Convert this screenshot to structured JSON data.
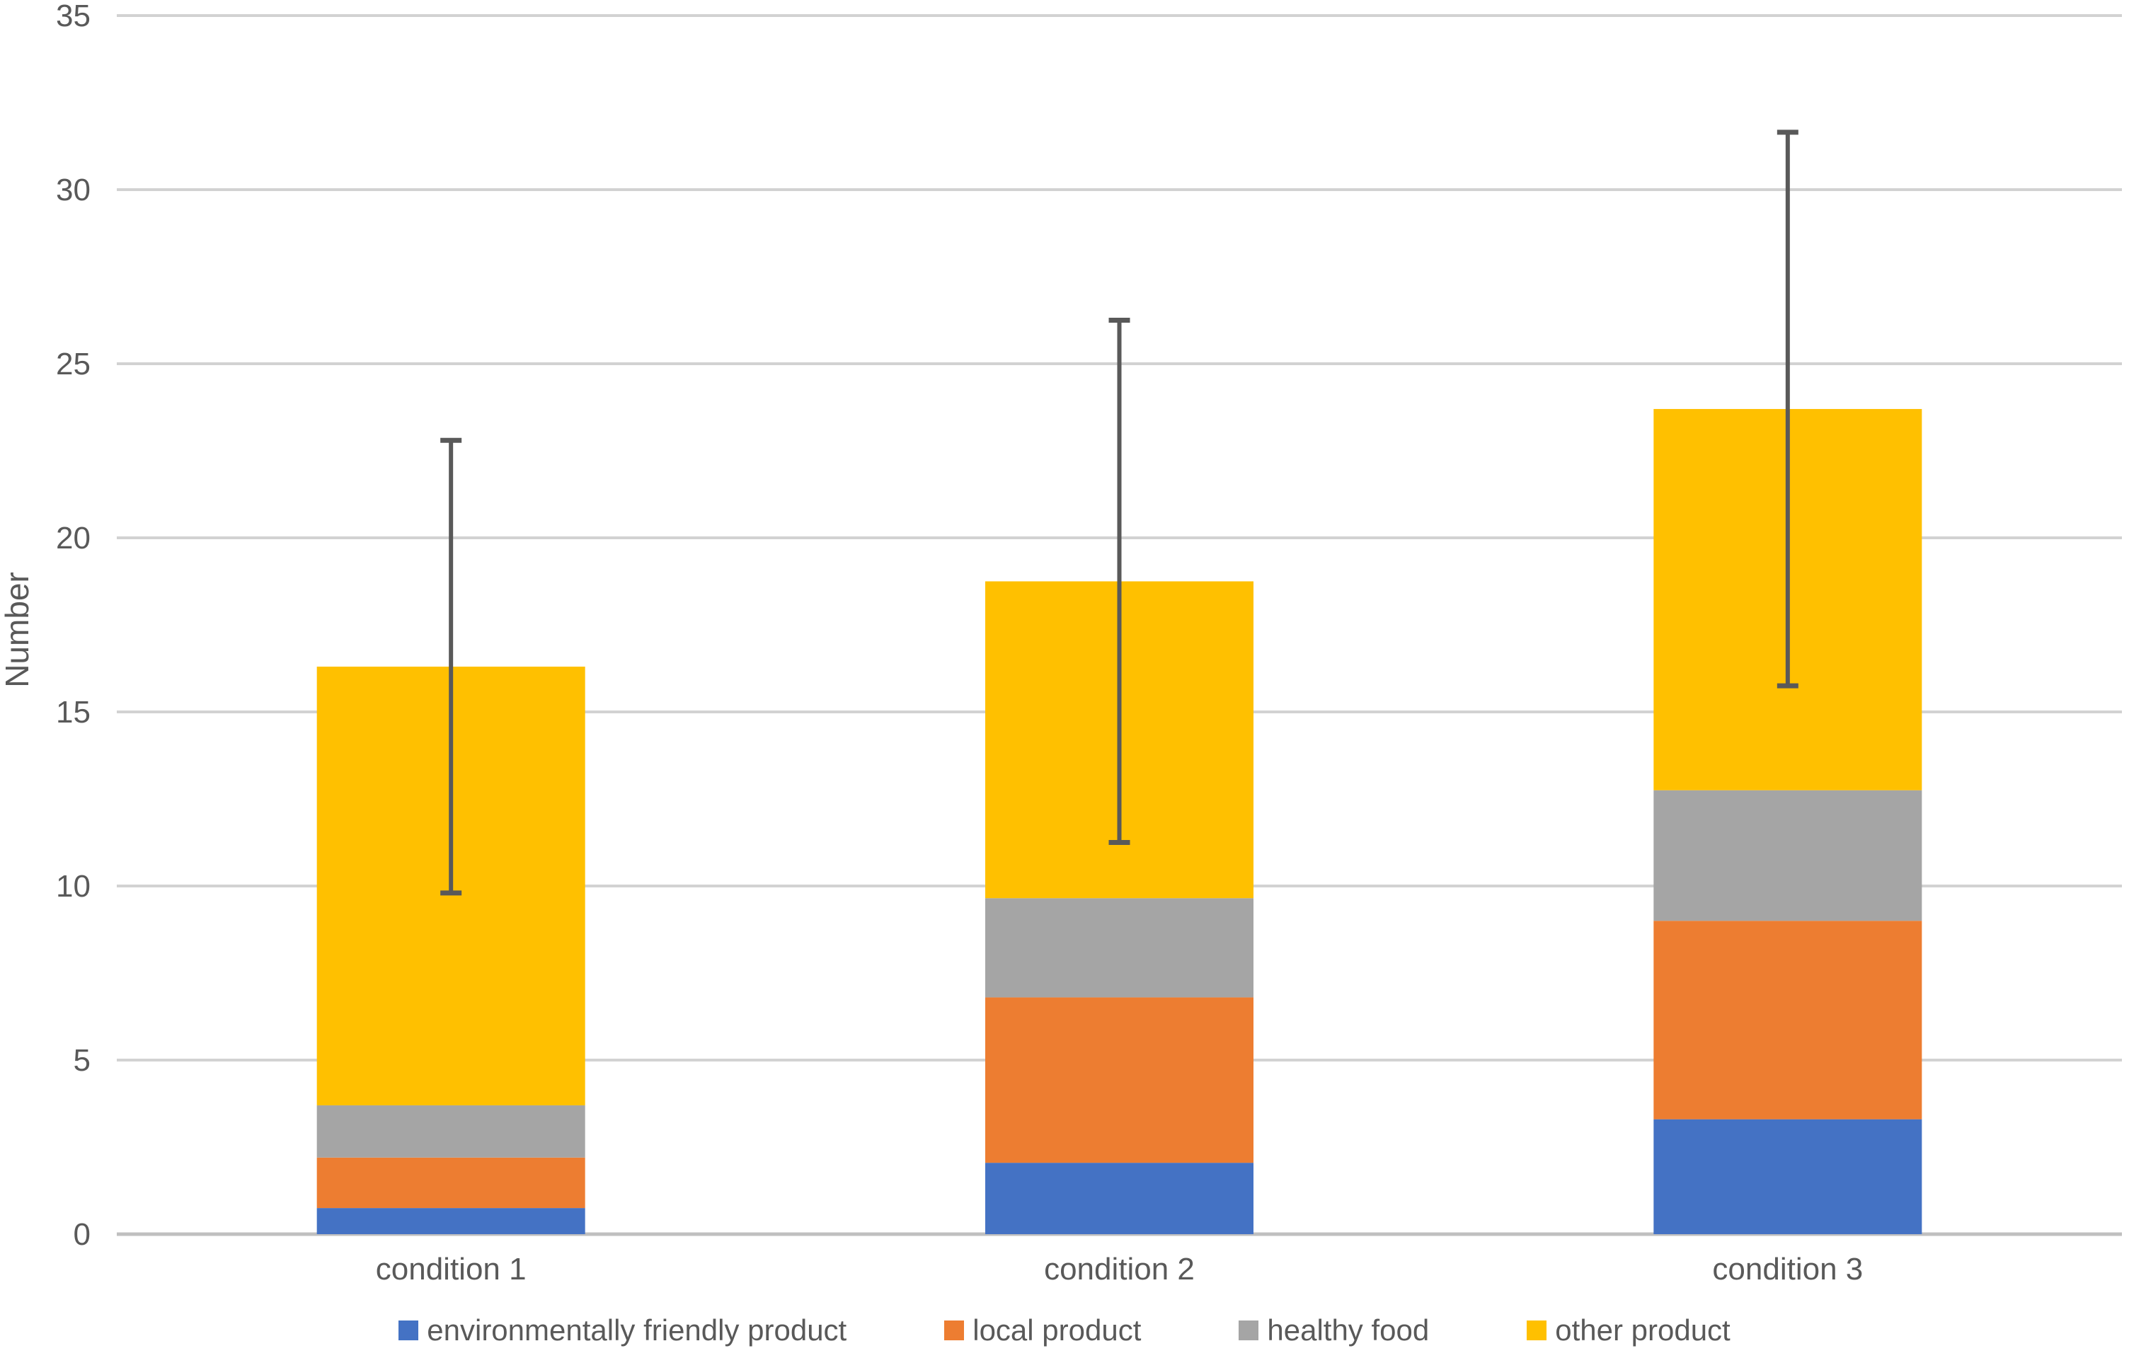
{
  "figure": {
    "title": "",
    "background": "#ffffff"
  },
  "chart_data": {
    "type": "bar",
    "stacked": true,
    "title": "",
    "xlabel": "",
    "ylabel": "Number",
    "ylim": [
      0,
      35
    ],
    "yticks": [
      0,
      5,
      10,
      15,
      20,
      25,
      30,
      35
    ],
    "grid": true,
    "gridline_color": "#d2d2d2",
    "axis_line_color": "#c0c0c0",
    "tick_label_color": "#595959",
    "legend_position": "bottom",
    "categories": [
      "condition 1",
      "condition 2",
      "condition 3"
    ],
    "series": [
      {
        "name": "environmentally friendly product",
        "color": "#4472c4",
        "values": [
          0.75,
          2.05,
          3.3
        ]
      },
      {
        "name": "local product",
        "color": "#ed7d31",
        "values": [
          1.45,
          4.75,
          5.7
        ]
      },
      {
        "name": "healthy food",
        "color": "#a5a5a5",
        "values": [
          1.5,
          2.85,
          3.75
        ]
      },
      {
        "name": "other product",
        "color": "#ffc000",
        "values": [
          12.6,
          9.1,
          10.95
        ]
      }
    ],
    "totals": [
      16.3,
      18.75,
      23.7
    ],
    "error_bars": {
      "plus_minus": [
        6.5,
        7.5,
        7.95
      ],
      "upper_ends": [
        22.8,
        26.25,
        31.65
      ],
      "lower_ends": [
        9.8,
        11.25,
        15.75
      ],
      "color": "#595959"
    }
  }
}
